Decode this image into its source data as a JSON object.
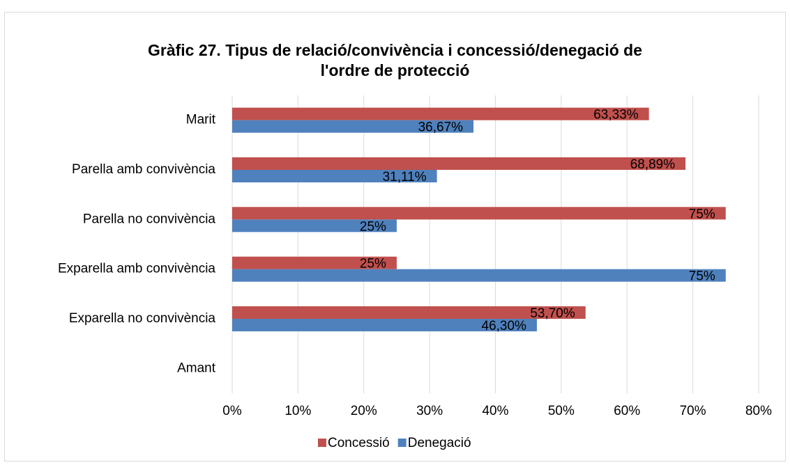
{
  "chart_data": {
    "type": "hbar",
    "title": "Gràfic 27. Tipus de relació/convivència i concessió/denegació de l'ordre de protecció",
    "categories": [
      "Marit",
      "Parella amb convivència",
      "Parella no convivència",
      "Exparella amb convivència",
      "Exparella no convivència",
      "Amant"
    ],
    "series": [
      {
        "name": "Concessió",
        "color": "#c0504d",
        "values": [
          63.33,
          68.89,
          75,
          25,
          53.7,
          null
        ],
        "value_labels": [
          "63,33%",
          "68,89%",
          "75%",
          "25%",
          "53,70%",
          null
        ]
      },
      {
        "name": "Denegació",
        "color": "#4f81bd",
        "values": [
          36.67,
          31.11,
          25,
          75,
          46.3,
          null
        ],
        "value_labels": [
          "36,67%",
          "31,11%",
          "25%",
          "75%",
          "46,30%",
          null
        ]
      }
    ],
    "xlim": [
      0,
      80
    ],
    "xticks": [
      {
        "value": 0,
        "label": "0%"
      },
      {
        "value": 10,
        "label": "10%"
      },
      {
        "value": 20,
        "label": "20%"
      },
      {
        "value": 30,
        "label": "30%"
      },
      {
        "value": 40,
        "label": "40%"
      },
      {
        "value": 50,
        "label": "50%"
      },
      {
        "value": 60,
        "label": "60%"
      },
      {
        "value": 70,
        "label": "70%"
      },
      {
        "value": 80,
        "label": "80%"
      }
    ],
    "grid": true,
    "legend": "bottom"
  }
}
